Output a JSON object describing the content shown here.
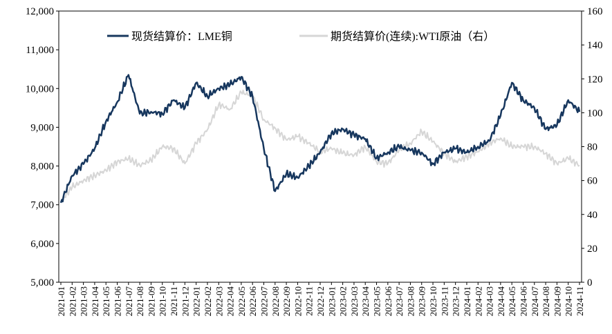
{
  "chart_data": {
    "type": "line",
    "title": "",
    "x": [
      "2021-01",
      "2021-02",
      "2021-03",
      "2021-04",
      "2021-05",
      "2021-06",
      "2021-07",
      "2021-08",
      "2021-09",
      "2021-10",
      "2021-11",
      "2021-12",
      "2022-01",
      "2022-02",
      "2022-03",
      "2022-04",
      "2022-05",
      "2022-06",
      "2022-07",
      "2022-08",
      "2022-09",
      "2022-10",
      "2022-11",
      "2022-12",
      "2023-01",
      "2023-02",
      "2023-03",
      "2023-04",
      "2023-05",
      "2023-06",
      "2023-07",
      "2023-08",
      "2023-09",
      "2023-10",
      "2023-11",
      "2023-12",
      "2024-01",
      "2024-02",
      "2024-03",
      "2024-04",
      "2024-05",
      "2024-06",
      "2024-07",
      "2024-08",
      "2024-09",
      "2024-10",
      "2024-11"
    ],
    "left_axis": {
      "min": 5000,
      "max": 12000,
      "ticks": [
        5000,
        6000,
        7000,
        8000,
        9000,
        10000,
        11000,
        12000
      ],
      "tick_labels": [
        "5,000",
        "6,000",
        "7,000",
        "8,000",
        "9,000",
        "10,000",
        "11,000",
        "12,000"
      ]
    },
    "right_axis": {
      "min": 0,
      "max": 160,
      "ticks": [
        0,
        20,
        40,
        60,
        80,
        100,
        120,
        140,
        160
      ],
      "tick_labels": [
        "0",
        "20",
        "40",
        "60",
        "80",
        "100",
        "120",
        "140",
        "160"
      ]
    },
    "series": [
      {
        "name": "现货结算价：LME铜",
        "axis": "left",
        "color": "#17375e",
        "values": [
          7050,
          7750,
          8050,
          8450,
          9150,
          9650,
          10350,
          9350,
          9400,
          9350,
          9700,
          9500,
          10150,
          9800,
          10000,
          10100,
          10300,
          9800,
          8450,
          7350,
          7800,
          7700,
          8000,
          8350,
          8850,
          8950,
          8800,
          8700,
          8200,
          8350,
          8500,
          8400,
          8350,
          8050,
          8350,
          8450,
          8350,
          8500,
          8650,
          9300,
          10150,
          9700,
          9500,
          8950,
          9050,
          9700,
          9400
        ]
      },
      {
        "name": "期货结算价(连续):WTI原油（右）",
        "axis": "right",
        "color": "#d6d6d6",
        "values": [
          48,
          56,
          60,
          63,
          66,
          71,
          73,
          69,
          72,
          80,
          79,
          70,
          82,
          90,
          105,
          102,
          112,
          110,
          96,
          91,
          84,
          86,
          82,
          77,
          79,
          76,
          75,
          80,
          71,
          70,
          78,
          82,
          89,
          83,
          76,
          71,
          74,
          77,
          82,
          85,
          80,
          80,
          80,
          76,
          70,
          73,
          69
        ]
      }
    ],
    "legend": {
      "placement": "top"
    }
  }
}
